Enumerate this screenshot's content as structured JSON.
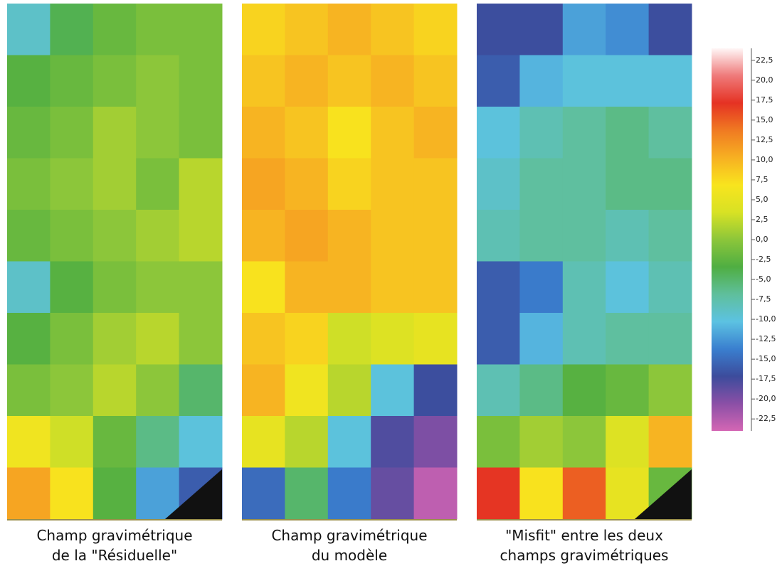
{
  "chart_data": {
    "type": "heatmap",
    "zlim": [
      -24,
      24
    ],
    "colorscale": [
      "#d466b4",
      "#8a4fa6",
      "#3c4c9c",
      "#3a7fcf",
      "#5cc2e2",
      "#5fbf9c",
      "#4fae42",
      "#8cc63a",
      "#d8e224",
      "#f8e41e",
      "#f7b022",
      "#f07a22",
      "#e53223",
      "#ef7a7a",
      "#fff6f6"
    ],
    "zticks": [
      {
        "value": 22.5,
        "label": "22,5"
      },
      {
        "value": 20,
        "label": "20,0"
      },
      {
        "value": 17.5,
        "label": "17,5"
      },
      {
        "value": 15,
        "label": "15,0"
      },
      {
        "value": 12.5,
        "label": "12,5"
      },
      {
        "value": 10,
        "label": "10,0"
      },
      {
        "value": 7.5,
        "label": "7,5"
      },
      {
        "value": 5,
        "label": "5,0"
      },
      {
        "value": 2.5,
        "label": "2,5"
      },
      {
        "value": 0,
        "label": "0,0"
      },
      {
        "value": -2.5,
        "label": "-2,5"
      },
      {
        "value": -5,
        "label": "-5,0"
      },
      {
        "value": -7.5,
        "label": "-7,5"
      },
      {
        "value": -10,
        "label": "-10,0"
      },
      {
        "value": -12.5,
        "label": "-12,5"
      },
      {
        "value": -15,
        "label": "-15,0"
      },
      {
        "value": -17.5,
        "label": "-17,5"
      },
      {
        "value": -20,
        "label": "-20,0"
      },
      {
        "value": -22.5,
        "label": "-22,5"
      }
    ],
    "maps": [
      {
        "caption": [
          "Champ gravimétrique",
          "de la \"Résiduelle\""
        ],
        "z": [
          [
            -9,
            -4,
            -2,
            -1,
            -1
          ],
          [
            -3,
            -2,
            -1,
            0,
            -1
          ],
          [
            -2,
            -1,
            1,
            0,
            -1
          ],
          [
            -1,
            0,
            1,
            -1,
            2
          ],
          [
            -2,
            -1,
            0,
            1,
            2
          ],
          [
            -9,
            -3,
            -1,
            0,
            0
          ],
          [
            -3,
            -1,
            1,
            2,
            0
          ],
          [
            -1,
            0,
            2,
            0,
            -5
          ],
          [
            6,
            3,
            -2,
            -6,
            -10
          ],
          [
            11,
            7,
            -3,
            -12,
            -16
          ]
        ]
      },
      {
        "caption": [
          "Champ gravimétrique",
          "du modèle"
        ],
        "z": [
          [
            8,
            9,
            10,
            9,
            8
          ],
          [
            9,
            10,
            9,
            10,
            9
          ],
          [
            10,
            9,
            7,
            9,
            10
          ],
          [
            11,
            10,
            8,
            9,
            9
          ],
          [
            10,
            11,
            10,
            9,
            9
          ],
          [
            7,
            10,
            10,
            9,
            9
          ],
          [
            9,
            8,
            3,
            4,
            5
          ],
          [
            10,
            6,
            2,
            -10,
            -17
          ],
          [
            5,
            2,
            -10,
            -18,
            -20
          ],
          [
            -15,
            -5,
            -14,
            -19,
            -23
          ]
        ]
      },
      {
        "caption": [
          "\"Misfit\" entre les deux",
          "champs gravimétriques"
        ],
        "z": [
          [
            -17,
            -17,
            -12,
            -13,
            -17
          ],
          [
            -16,
            -11,
            -10,
            -10,
            -10
          ],
          [
            -10,
            -8,
            -7,
            -6,
            -7
          ],
          [
            -9,
            -7,
            -7,
            -6,
            -6
          ],
          [
            -8,
            -7,
            -7,
            -8,
            -7
          ],
          [
            -16,
            -14,
            -8,
            -10,
            -8
          ],
          [
            -16,
            -11,
            -8,
            -7,
            -7
          ],
          [
            -8,
            -6,
            -3,
            -2,
            0
          ],
          [
            -1,
            1,
            0,
            4,
            10
          ],
          [
            17,
            7,
            15,
            5,
            -2
          ]
        ]
      }
    ]
  }
}
